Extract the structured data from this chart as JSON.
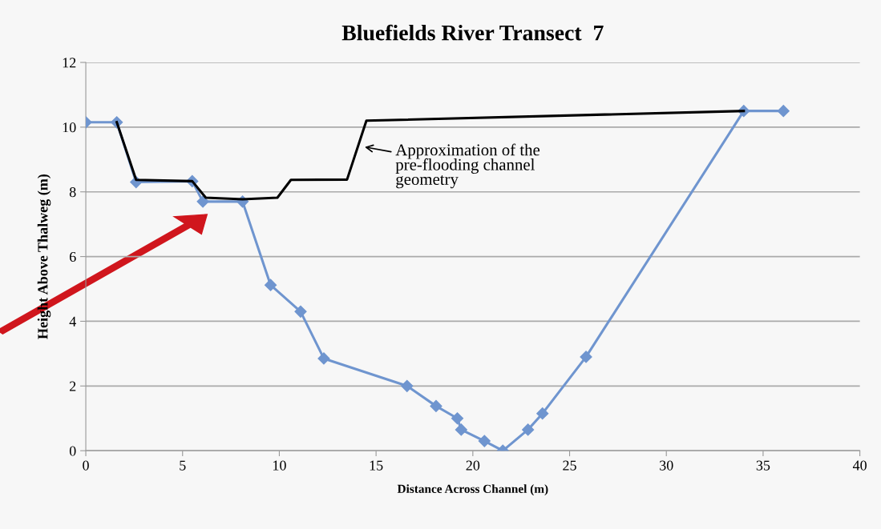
{
  "chart_data": {
    "type": "line",
    "title": "Bluefields River Transect  7",
    "xlabel": "Distance Across Channel (m)",
    "ylabel": "Height Above Thalweg (m)",
    "series": [
      {
        "color": "#6f95cf",
        "marker": "diamond",
        "x": [
          0,
          1.6,
          2.6,
          5.5,
          6.05,
          8.1,
          9.55,
          11.1,
          12.3,
          16.6,
          18.1,
          19.2,
          19.4,
          20.6,
          21.55,
          22.85,
          23.6,
          25.85,
          34.0,
          36.05
        ],
        "values": [
          10.15,
          10.15,
          8.3,
          8.33,
          7.7,
          7.7,
          5.12,
          4.3,
          2.85,
          2.0,
          1.38,
          1.0,
          0.65,
          0.3,
          0,
          0.65,
          1.15,
          2.9,
          10.5,
          10.5
        ]
      },
      {
        "color": "#000000",
        "marker": "none",
        "x": [
          1.6,
          2.6,
          5.5,
          6.2,
          8.1,
          9.9,
          10.6,
          13.5,
          14.5,
          34.0
        ],
        "values": [
          10.15,
          8.37,
          8.33,
          7.82,
          7.77,
          7.82,
          8.37,
          8.38,
          10.2,
          10.5
        ]
      }
    ],
    "annotations": [
      {
        "text": "Approximation of the\npre-flooding channel\ngeometry",
        "x": 14.3,
        "y": 9.4
      }
    ],
    "xlim": [
      0,
      40
    ],
    "xticks": [
      0,
      5,
      10,
      15,
      20,
      25,
      30,
      35,
      40
    ],
    "ylim": [
      0,
      12
    ],
    "yticks": [
      0,
      2,
      4,
      6,
      8,
      10,
      12
    ],
    "grid": "y"
  }
}
